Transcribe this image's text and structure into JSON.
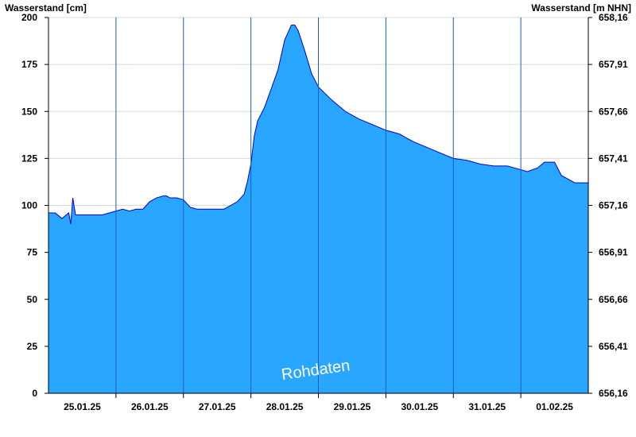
{
  "chart_data": {
    "type": "area",
    "title": "",
    "ylabel_left": "Wasserstand [cm]",
    "ylabel_right": "Wasserstand [m NHN]",
    "watermark": "Rohdaten",
    "ylim": [
      0,
      200
    ],
    "y_ticks": [
      0,
      25,
      50,
      75,
      100,
      125,
      150,
      175,
      200
    ],
    "right_ticks": [
      "656,16",
      "656,41",
      "656,66",
      "656,91",
      "657,16",
      "657,41",
      "657,66",
      "657,91",
      "658,16"
    ],
    "x_labels": [
      "25.01.25",
      "26.01.25",
      "27.01.25",
      "28.01.25",
      "29.01.25",
      "30.01.25",
      "31.01.25",
      "01.02.25"
    ],
    "xlim_days": [
      0,
      8
    ],
    "day_separators": [
      1,
      2,
      3,
      4,
      5,
      6,
      7
    ],
    "grid": true,
    "colors": {
      "fill": "#29a6ff",
      "line": "#0000cc",
      "grid": "#d9d9d9",
      "separator": "#1a5fb4"
    },
    "series": [
      {
        "x": [
          0.0,
          0.1,
          0.2,
          0.3,
          0.33,
          0.36,
          0.4,
          0.5,
          0.6,
          0.7,
          0.8,
          0.9,
          1.0,
          1.1,
          1.2,
          1.3,
          1.4,
          1.5,
          1.6,
          1.7,
          1.75,
          1.8,
          1.9,
          2.0,
          2.1,
          2.2,
          2.3,
          2.4,
          2.5,
          2.6,
          2.7,
          2.8,
          2.9,
          2.95,
          3.0,
          3.05,
          3.1,
          3.2,
          3.3,
          3.4,
          3.5,
          3.6,
          3.65,
          3.7,
          3.8,
          3.9,
          4.0,
          4.2,
          4.4,
          4.6,
          4.8,
          5.0,
          5.2,
          5.4,
          5.6,
          5.8,
          6.0,
          6.2,
          6.4,
          6.6,
          6.8,
          6.9,
          7.0,
          7.1,
          7.25,
          7.35,
          7.5,
          7.6,
          7.7,
          7.8,
          8.0
        ],
        "y": [
          96,
          96,
          93,
          96,
          90,
          104,
          95,
          95,
          95,
          95,
          95,
          96,
          97,
          98,
          97,
          98,
          98,
          102,
          104,
          105,
          105,
          104,
          104,
          103,
          99,
          98,
          98,
          98,
          98,
          98,
          100,
          102,
          106,
          113,
          122,
          137,
          145,
          152,
          162,
          172,
          188,
          196,
          196,
          193,
          182,
          170,
          163,
          156,
          150,
          146,
          143,
          140,
          138,
          134,
          131,
          128,
          125,
          124,
          122,
          121,
          121,
          120,
          119,
          118,
          120,
          123,
          123,
          116,
          114,
          112,
          112
        ]
      }
    ]
  }
}
